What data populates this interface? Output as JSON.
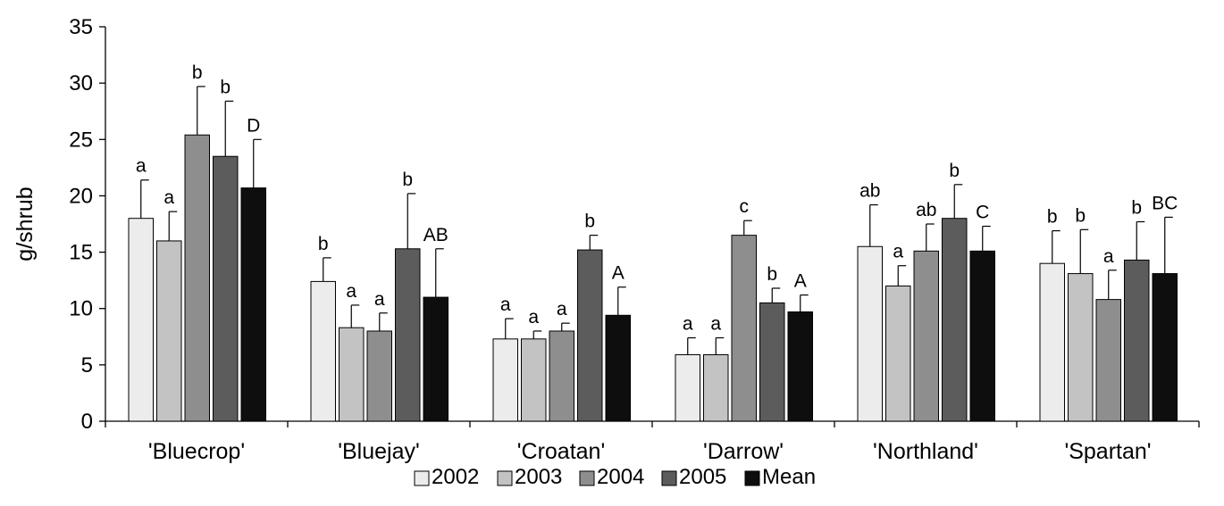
{
  "chart_data": {
    "type": "bar",
    "ylabel": "g/shrub",
    "ylim": [
      0,
      35
    ],
    "yticks": [
      "0",
      "5",
      "10",
      "15",
      "20",
      "25",
      "30",
      "35"
    ],
    "categories": [
      "'Bluecrop'",
      "'Bluejay'",
      "'Croatan'",
      "'Darrow'",
      "'Northland'",
      "'Spartan'"
    ],
    "legend_position": "bottom",
    "grid": false,
    "series": [
      {
        "name": "2002",
        "color": "#ececec",
        "values": [
          18.0,
          12.4,
          7.3,
          5.9,
          15.5,
          14.0
        ],
        "errors": [
          3.4,
          2.1,
          1.8,
          1.5,
          3.7,
          2.9
        ],
        "letters": [
          "a",
          "b",
          "a",
          "a",
          "ab",
          "b"
        ]
      },
      {
        "name": "2003",
        "color": "#c3c3c3",
        "values": [
          16.0,
          8.3,
          7.3,
          5.9,
          12.0,
          13.1
        ],
        "errors": [
          2.6,
          2.0,
          0.7,
          1.5,
          1.8,
          3.9
        ],
        "letters": [
          "a",
          "a",
          "a",
          "a",
          "a",
          "b"
        ]
      },
      {
        "name": "2004",
        "color": "#8e8e8e",
        "values": [
          25.4,
          8.0,
          8.0,
          16.5,
          15.1,
          10.8
        ],
        "errors": [
          4.3,
          1.6,
          0.7,
          1.3,
          2.4,
          2.6
        ],
        "letters": [
          "b",
          "a",
          "a",
          "c",
          "ab",
          "a"
        ]
      },
      {
        "name": "2005",
        "color": "#5c5c5c",
        "values": [
          23.5,
          15.3,
          15.2,
          10.5,
          18.0,
          14.3
        ],
        "errors": [
          4.9,
          4.9,
          1.3,
          1.3,
          3.0,
          3.4
        ],
        "letters": [
          "b",
          "b",
          "b",
          "b",
          "b",
          "b"
        ]
      },
      {
        "name": "Mean",
        "color": "#0e0e0e",
        "values": [
          20.7,
          11.0,
          9.4,
          9.7,
          15.1,
          13.1
        ],
        "errors": [
          4.3,
          4.3,
          2.5,
          1.5,
          2.2,
          5.0
        ],
        "letters": [
          "D",
          "AB",
          "A",
          "A",
          "C",
          "BC"
        ]
      }
    ]
  }
}
